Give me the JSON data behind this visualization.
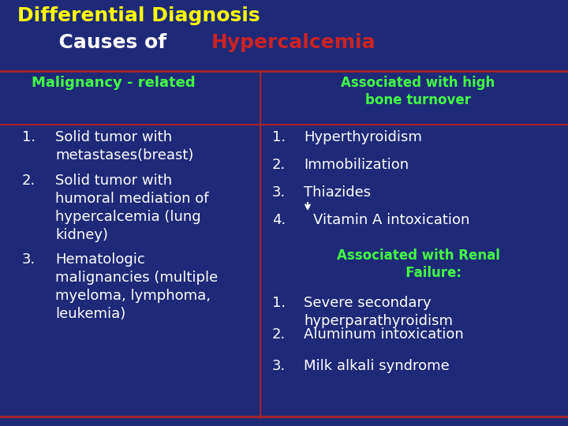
{
  "title_line1": "Differential Diagnosis",
  "title_line2_prefix": "      Causes of ",
  "title_line2_highlight": "Hypercalcemia",
  "title_line1_color": "#FFFF00",
  "title_line2_prefix_color": "#FFFFFF",
  "title_line2_highlight_color": "#CC2222",
  "background_color": "#1E2A78",
  "left_header": "Malignancy - related",
  "left_header_color": "#44FF44",
  "right_header": "Associated with high\nbone turnover",
  "right_header_color": "#44FF44",
  "left_items": [
    "Solid tumor with\nmetastases(breast)",
    "Solid tumor with\nhumoral mediation of\nhypercalcemia (lung\nkidney)",
    "Hematologic\nmalignancies (multiple\nmyeloma, lymphoma,\nleukemia)"
  ],
  "right_items_high_bone": [
    "Hyperthyroidism",
    "Immobilization",
    "Thiazides",
    "Vitamin A intoxication"
  ],
  "right_section2_header": "Associated with Renal\n       Failure:",
  "right_section2_header_color": "#44FF44",
  "right_items_renal": [
    "Severe secondary\nhyperparathyroidism",
    "Aluminum intoxication",
    "Milk alkali syndrome"
  ],
  "item_text_color": "#FFFFFF",
  "separator_color": "#AA2222",
  "divider_color": "#AA2222",
  "num_color": "#FFFFFF"
}
